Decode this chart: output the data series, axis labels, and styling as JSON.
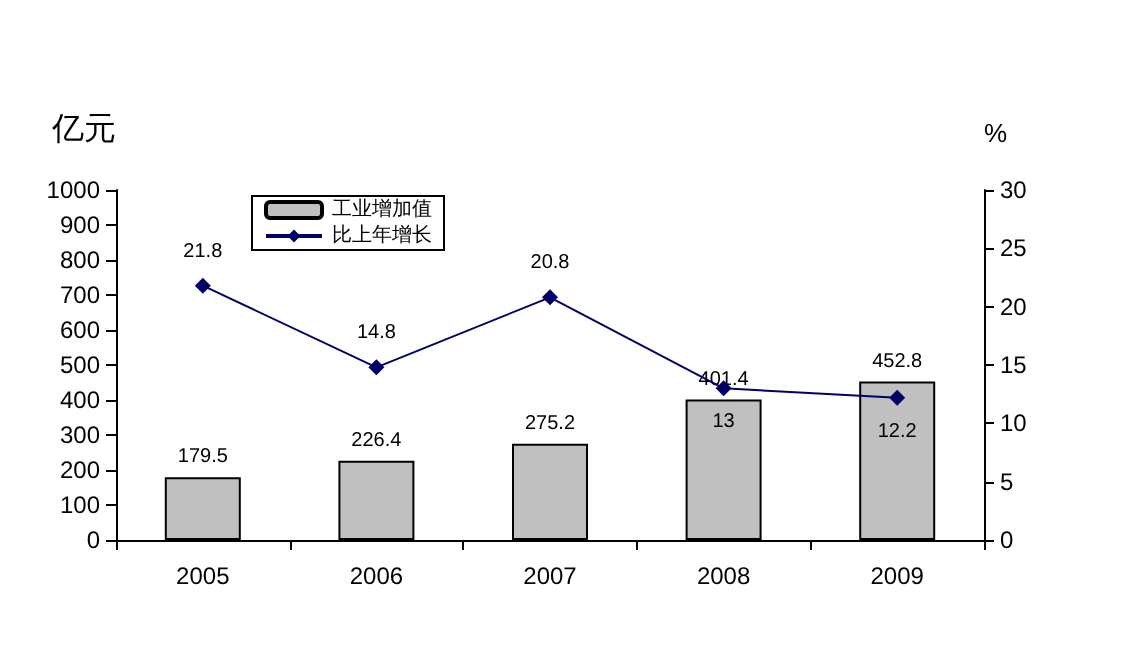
{
  "chart_data": {
    "type": "bar",
    "ylabel": "亿元",
    "y2label": "%",
    "categories": [
      "2005",
      "2006",
      "2007",
      "2008",
      "2009"
    ],
    "series": [
      {
        "name": "工业增加值",
        "color": "#c0c0c0",
        "values": [
          179.5,
          226.4,
          275.2,
          401.4,
          452.8
        ]
      },
      {
        "name": "比上年增长",
        "type": "line",
        "axis": "y2",
        "color": "#000066",
        "marker": "diamond",
        "values": [
          21.8,
          14.8,
          20.8,
          13,
          12.2
        ]
      }
    ],
    "ylim": [
      0,
      1000
    ],
    "yticks": [
      0,
      100,
      200,
      300,
      400,
      500,
      600,
      700,
      800,
      900,
      1000
    ],
    "y2lim": [
      0,
      30
    ],
    "y2ticks": [
      0,
      5,
      10,
      15,
      20,
      25,
      30
    ],
    "data_labels": true,
    "grid": false,
    "legend": "top left"
  }
}
